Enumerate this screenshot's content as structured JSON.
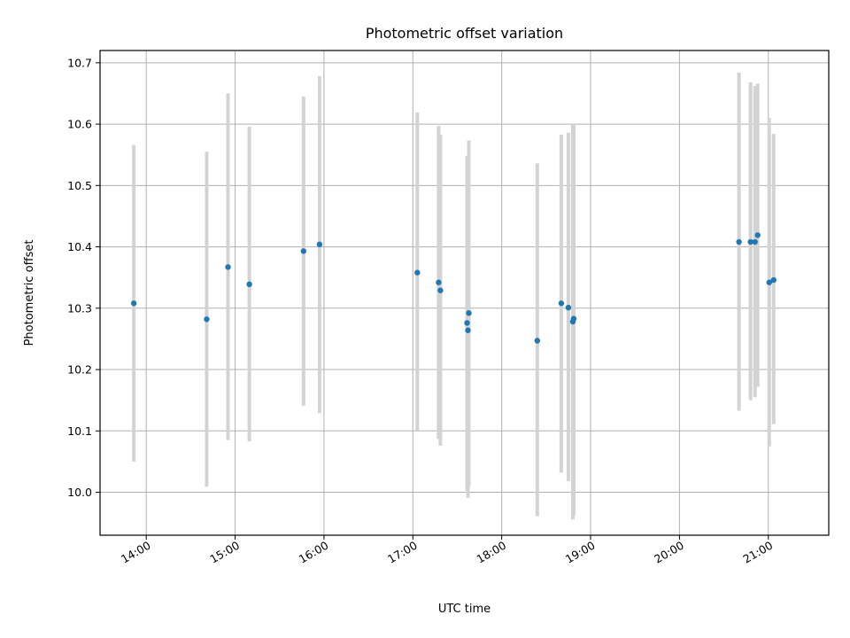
{
  "chart_data": {
    "type": "scatter",
    "title": "Photometric offset variation",
    "xlabel": "UTC time",
    "ylabel": "Photometric offset",
    "x_unit": "hour of day (UTC)",
    "xlim": [
      13.48,
      21.68
    ],
    "ylim": [
      9.93,
      10.72
    ],
    "xticks": [
      14,
      15,
      16,
      17,
      18,
      19,
      20,
      21
    ],
    "xtick_labels": [
      "14:00",
      "15:00",
      "16:00",
      "17:00",
      "18:00",
      "19:00",
      "20:00",
      "21:00"
    ],
    "yticks": [
      10.0,
      10.1,
      10.2,
      10.3,
      10.4,
      10.5,
      10.6,
      10.7
    ],
    "ytick_labels": [
      "10.0",
      "10.1",
      "10.2",
      "10.3",
      "10.4",
      "10.5",
      "10.6",
      "10.7"
    ],
    "grid": true,
    "marker_color": "#1f77b4",
    "errorbar_color": "#d3d3d3",
    "points": [
      {
        "x": 13.86,
        "y": 10.308,
        "lo": 10.05,
        "hi": 10.566
      },
      {
        "x": 14.68,
        "y": 10.282,
        "lo": 10.009,
        "hi": 10.555
      },
      {
        "x": 14.92,
        "y": 10.367,
        "lo": 10.085,
        "hi": 10.65
      },
      {
        "x": 15.16,
        "y": 10.339,
        "lo": 10.083,
        "hi": 10.596
      },
      {
        "x": 15.77,
        "y": 10.393,
        "lo": 10.141,
        "hi": 10.645
      },
      {
        "x": 15.95,
        "y": 10.404,
        "lo": 10.129,
        "hi": 10.678
      },
      {
        "x": 17.05,
        "y": 10.358,
        "lo": 10.1,
        "hi": 10.619
      },
      {
        "x": 17.29,
        "y": 10.342,
        "lo": 10.087,
        "hi": 10.597
      },
      {
        "x": 17.31,
        "y": 10.329,
        "lo": 10.076,
        "hi": 10.583
      },
      {
        "x": 17.61,
        "y": 10.276,
        "lo": 10.003,
        "hi": 10.548
      },
      {
        "x": 17.62,
        "y": 10.264,
        "lo": 9.991,
        "hi": 10.54
      },
      {
        "x": 17.63,
        "y": 10.292,
        "lo": 10.01,
        "hi": 10.573
      },
      {
        "x": 18.4,
        "y": 10.247,
        "lo": 9.961,
        "hi": 10.536
      },
      {
        "x": 18.67,
        "y": 10.308,
        "lo": 10.032,
        "hi": 10.583
      },
      {
        "x": 18.75,
        "y": 10.301,
        "lo": 10.018,
        "hi": 10.586
      },
      {
        "x": 18.8,
        "y": 10.278,
        "lo": 9.956,
        "hi": 10.6
      },
      {
        "x": 18.81,
        "y": 10.283,
        "lo": 9.962,
        "hi": 10.6
      },
      {
        "x": 20.67,
        "y": 10.408,
        "lo": 10.133,
        "hi": 10.684
      },
      {
        "x": 20.8,
        "y": 10.408,
        "lo": 10.15,
        "hi": 10.668
      },
      {
        "x": 20.85,
        "y": 10.408,
        "lo": 10.155,
        "hi": 10.662
      },
      {
        "x": 20.88,
        "y": 10.419,
        "lo": 10.172,
        "hi": 10.666
      },
      {
        "x": 21.01,
        "y": 10.342,
        "lo": 10.075,
        "hi": 10.61
      },
      {
        "x": 21.06,
        "y": 10.346,
        "lo": 10.111,
        "hi": 10.584
      }
    ]
  }
}
